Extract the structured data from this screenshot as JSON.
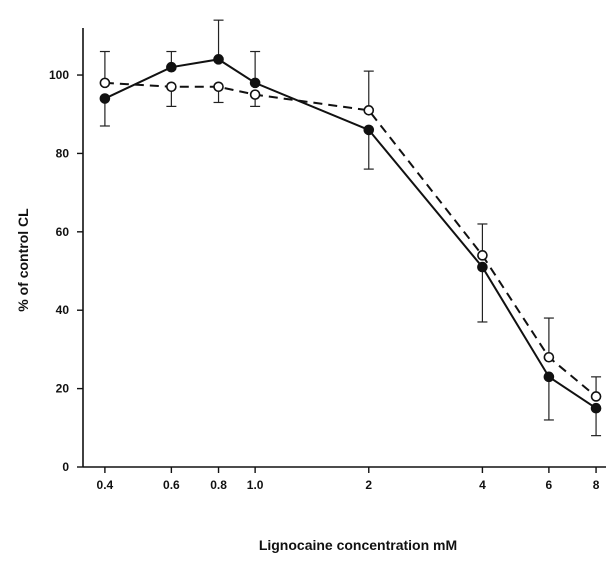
{
  "chart_data": {
    "type": "line",
    "xlabel": "Lignocaine concentration mM",
    "ylabel": "% of control CL",
    "x_scale": "log",
    "xlim": [
      0.35,
      8.5
    ],
    "ylim": [
      0,
      112
    ],
    "x_ticks": [
      0.4,
      0.6,
      0.8,
      1.0,
      2,
      4,
      6,
      8
    ],
    "x_tick_labels": [
      "0.4",
      "0.6",
      "0.8",
      "1.0",
      "2",
      "4",
      "6",
      "8"
    ],
    "y_ticks": [
      0,
      20,
      40,
      60,
      80,
      100
    ],
    "y_tick_labels": [
      "0",
      "20",
      "40",
      "60",
      "80",
      "100"
    ],
    "grid": false,
    "legend": "none",
    "series": [
      {
        "line_style": "solid",
        "marker": "filled-circle",
        "x": [
          0.4,
          0.6,
          0.8,
          1.0,
          2,
          4,
          6,
          8
        ],
        "y": [
          94,
          102,
          104,
          98,
          86,
          51,
          23,
          15
        ],
        "err_low": [
          7,
          0,
          0,
          0,
          10,
          14,
          11,
          7
        ],
        "err_high": [
          0,
          4,
          10,
          8,
          0,
          0,
          0,
          0
        ]
      },
      {
        "line_style": "dashed",
        "marker": "open-circle",
        "x": [
          0.4,
          0.6,
          0.8,
          1.0,
          2,
          4,
          6,
          8
        ],
        "y": [
          98,
          97,
          97,
          95,
          91,
          54,
          28,
          18
        ],
        "err_low": [
          0,
          5,
          4,
          3,
          0,
          0,
          0,
          0
        ],
        "err_high": [
          8,
          0,
          0,
          0,
          10,
          8,
          10,
          5
        ]
      }
    ]
  }
}
